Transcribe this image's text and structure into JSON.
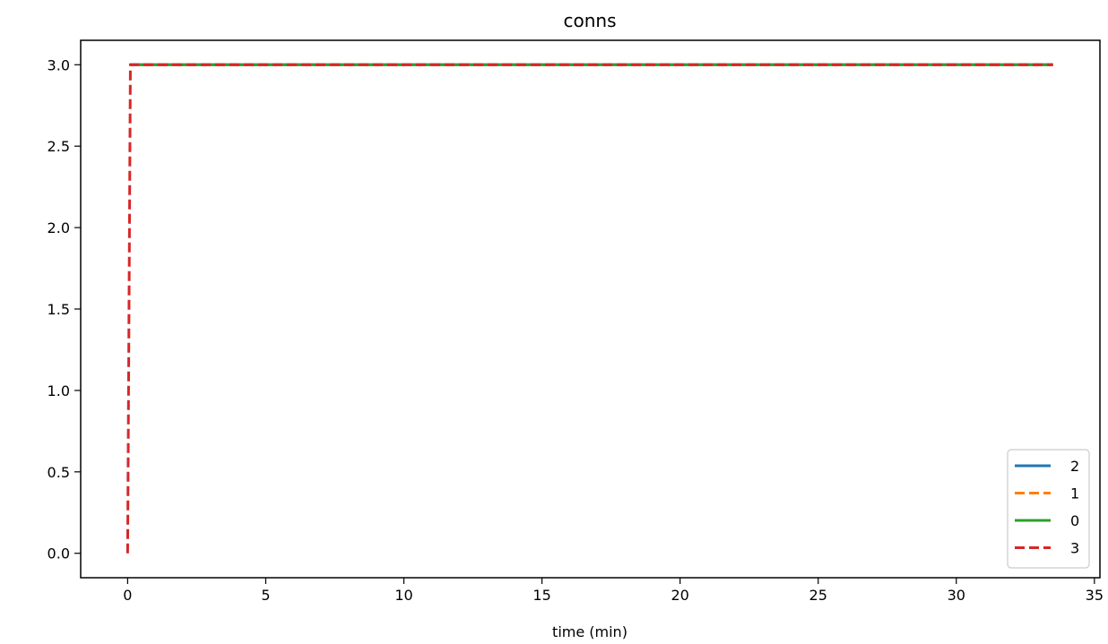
{
  "chart_data": {
    "type": "line",
    "title": "conns",
    "xlabel": "time (min)",
    "ylabel": "",
    "xlim": [
      -1.7,
      35.2
    ],
    "ylim": [
      -0.15,
      3.15
    ],
    "xticks": [
      0,
      5,
      10,
      15,
      20,
      25,
      30,
      35
    ],
    "yticks": [
      0.0,
      0.5,
      1.0,
      1.5,
      2.0,
      2.5,
      3.0
    ],
    "xtick_labels": [
      "0",
      "5",
      "10",
      "15",
      "20",
      "25",
      "30",
      "35"
    ],
    "ytick_labels": [
      "0.0",
      "0.5",
      "1.0",
      "1.5",
      "2.0",
      "2.5",
      "3.0"
    ],
    "grid": false,
    "legend_position": "bottom-right",
    "series": [
      {
        "name": "2",
        "color": "#1f77b4",
        "style": "solid",
        "x": [
          0.1,
          33.5
        ],
        "y": [
          3,
          3
        ]
      },
      {
        "name": "1",
        "color": "#ff7f0e",
        "style": "dashed",
        "x": [
          0.1,
          33.5
        ],
        "y": [
          3,
          3
        ]
      },
      {
        "name": "0",
        "color": "#2ca02c",
        "style": "solid",
        "x": [
          0.1,
          33.5
        ],
        "y": [
          3,
          3
        ]
      },
      {
        "name": "3",
        "color": "#d62728",
        "style": "dashed",
        "x": [
          0.0,
          0.1,
          33.5
        ],
        "y": [
          0,
          3,
          3
        ]
      }
    ]
  }
}
